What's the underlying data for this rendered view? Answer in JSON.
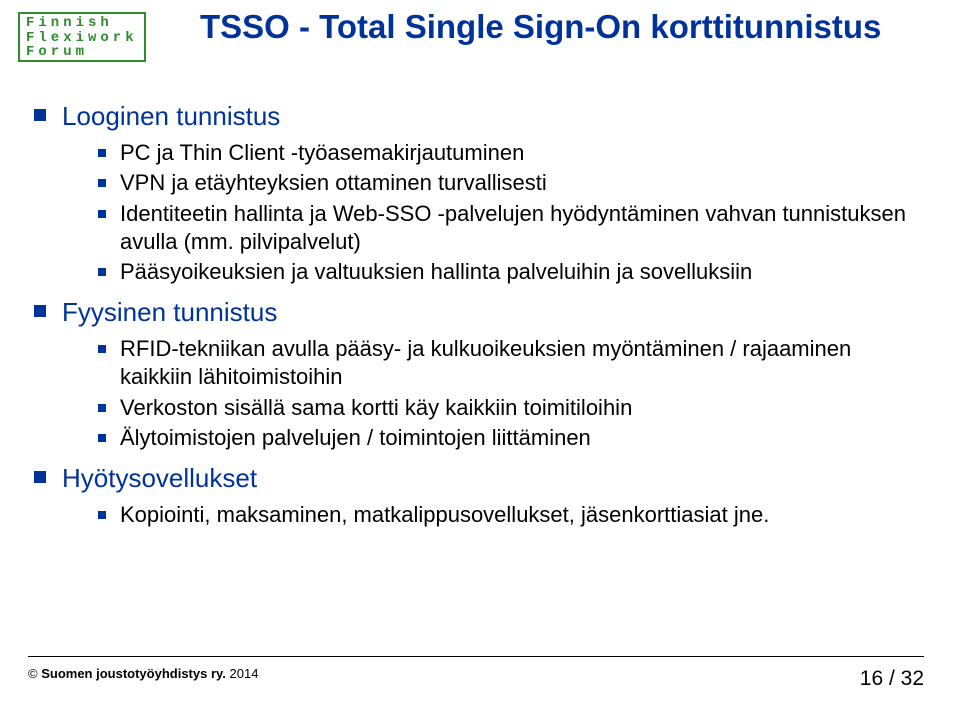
{
  "logo": {
    "line1": "Finnish",
    "line2": "Flexiwork",
    "line3": "Forum",
    "border_color": "#2e8b2e",
    "text_color": "#2e8b2e"
  },
  "title": {
    "text": "TSSO - Total Single Sign-On korttitunnistus",
    "color": "#003399",
    "fontsize": 33
  },
  "body_fontsize": 22,
  "bullet_color": "#003399",
  "sections": [
    {
      "label": "Looginen tunnistus",
      "items": [
        "PC ja Thin Client -työasemakirjautuminen",
        "VPN ja etäyhteyksien ottaminen turvallisesti",
        "Identiteetin hallinta ja Web-SSO -palvelujen hyödyntäminen vahvan tunnistuksen avulla (mm. pilvipalvelut)",
        "Pääsyoikeuksien ja valtuuksien hallinta palveluihin ja sovelluksiin"
      ]
    },
    {
      "label": "Fyysinen tunnistus",
      "items": [
        "RFID-tekniikan avulla pääsy- ja kulkuoikeuksien myöntäminen / rajaaminen kaikkiin lähitoimistoihin",
        "Verkoston sisällä sama kortti käy kaikkiin toimitiloihin",
        "Älytoimistojen palvelujen / toimintojen liittäminen"
      ]
    },
    {
      "label": "Hyötysovellukset",
      "items": [
        "Kopiointi, maksaminen, matkalippusovellukset, jäsenkorttiasiat jne."
      ]
    }
  ],
  "footer": {
    "copyright_symbol": "©",
    "org": "Suomen joustotyöyhdistys ry.",
    "year": "2014",
    "page": "16",
    "total": "/ 32"
  }
}
